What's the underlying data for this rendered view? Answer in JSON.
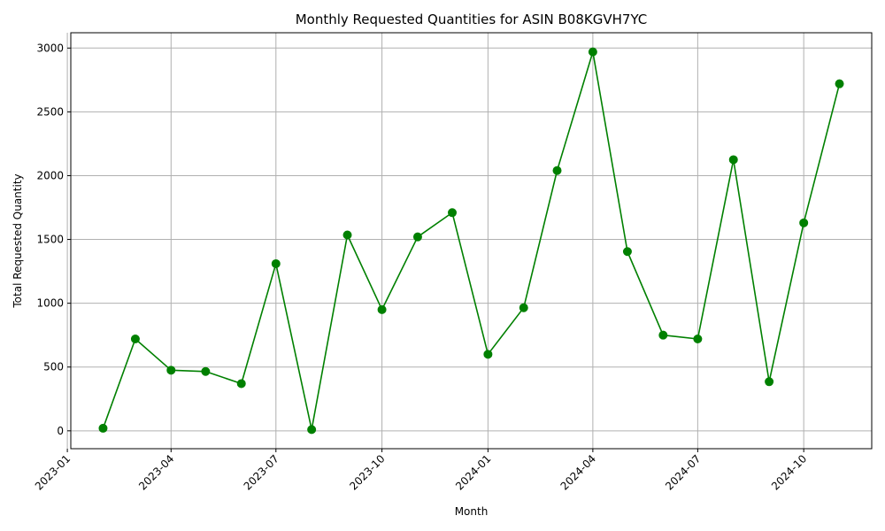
{
  "chart_data": {
    "type": "line",
    "title": "Monthly Requested Quantities for ASIN B08KGVH7YC",
    "xlabel": "Month",
    "ylabel": "Total Requested Quantity",
    "grid": true,
    "color": "#008000",
    "x_ticks": [
      "2023-01-01",
      "2023-04-01",
      "2023-07-01",
      "2023-10-01",
      "2024-01-01",
      "2024-04-01",
      "2024-07-01",
      "2024-10-01"
    ],
    "x_tick_labels": [
      "2023-01",
      "2023-04",
      "2023-07",
      "2023-10",
      "2024-01",
      "2024-04",
      "2024-07",
      "2024-10"
    ],
    "y_ticks": [
      0,
      500,
      1000,
      1500,
      2000,
      2500,
      3000
    ],
    "xlim": [
      "2023-01-04",
      "2024-11-29"
    ],
    "ylim": [
      -140,
      3120
    ],
    "series": [
      {
        "name": "",
        "x": [
          "2023-02-01",
          "2023-03-01",
          "2023-04-01",
          "2023-05-01",
          "2023-06-01",
          "2023-07-01",
          "2023-08-01",
          "2023-09-01",
          "2023-10-01",
          "2023-11-01",
          "2023-12-01",
          "2024-01-01",
          "2024-02-01",
          "2024-03-01",
          "2024-04-01",
          "2024-05-01",
          "2024-06-01",
          "2024-07-01",
          "2024-08-01",
          "2024-09-01",
          "2024-10-01",
          "2024-11-01"
        ],
        "values": [
          20,
          720,
          475,
          465,
          370,
          1310,
          10,
          1535,
          950,
          1520,
          1710,
          600,
          965,
          2040,
          2970,
          1405,
          750,
          720,
          2125,
          385,
          1630,
          2720
        ]
      }
    ]
  }
}
